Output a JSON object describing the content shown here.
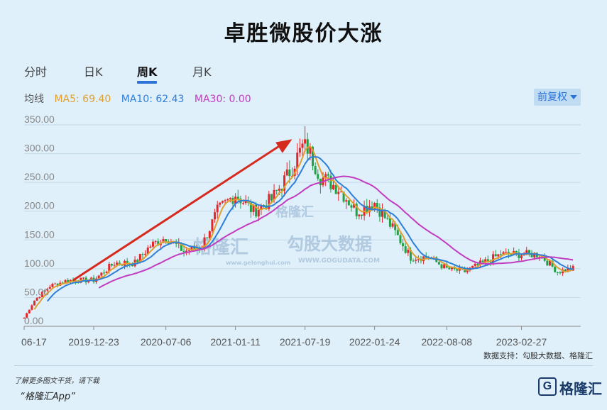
{
  "title": "卓胜微股价大涨",
  "tabs": [
    {
      "label": "分时",
      "active": false
    },
    {
      "label": "日K",
      "active": false
    },
    {
      "label": "周K",
      "active": true
    },
    {
      "label": "月K",
      "active": false
    }
  ],
  "ma_legend": {
    "label": "均线",
    "ma5": "MA5: 69.40",
    "ma10": "MA10: 62.43",
    "ma30": "MA30: 0.00"
  },
  "adjust_button": "前复权",
  "watermarks": [
    "格隆汇",
    "勾股大数据",
    "www.gelonghui.com",
    "WWW.GOGUDATA.COM"
  ],
  "source_text": "数据支持：勾股大数据、格隆汇",
  "footer": {
    "note1": "了解更多图文干货，请下载",
    "note2": "“格隆汇App”",
    "brand": "格隆汇"
  },
  "colors": {
    "up": "#e3262a",
    "down": "#22a046",
    "ma5": "#e0a030",
    "ma10": "#2f7fd8",
    "ma30": "#c23cc0",
    "arrow": "#d62a1e",
    "accent": "#2b73d6"
  },
  "chart_data": {
    "type": "candlestick",
    "title": "卓胜微股价大涨",
    "period": "weekly",
    "ylim": [
      0,
      350
    ],
    "yticks": [
      "0.00",
      "50.00",
      "100.00",
      "150.00",
      "200.00",
      "250.00",
      "300.00",
      "350.00"
    ],
    "xtick_labels": [
      "06-17",
      "2019-12-23",
      "2020-07-06",
      "2021-01-11",
      "2021-07-19",
      "2022-01-24",
      "2022-08-08",
      "2023-02-27"
    ],
    "close_series": [
      {
        "t": "2019-06-17",
        "v": 15
      },
      {
        "t": "2019-07-15",
        "v": 45
      },
      {
        "t": "2019-08-26",
        "v": 70
      },
      {
        "t": "2019-10-14",
        "v": 80
      },
      {
        "t": "2019-12-23",
        "v": 80
      },
      {
        "t": "2020-02-17",
        "v": 110
      },
      {
        "t": "2020-04-13",
        "v": 110
      },
      {
        "t": "2020-05-25",
        "v": 140
      },
      {
        "t": "2020-07-06",
        "v": 155
      },
      {
        "t": "2020-08-24",
        "v": 130
      },
      {
        "t": "2020-10-12",
        "v": 140
      },
      {
        "t": "2020-11-23",
        "v": 200
      },
      {
        "t": "2021-01-11",
        "v": 230
      },
      {
        "t": "2021-03-01",
        "v": 200
      },
      {
        "t": "2021-04-19",
        "v": 220
      },
      {
        "t": "2021-05-31",
        "v": 260
      },
      {
        "t": "2021-07-19",
        "v": 320
      },
      {
        "t": "2021-08-30",
        "v": 260
      },
      {
        "t": "2021-10-18",
        "v": 240
      },
      {
        "t": "2021-12-06",
        "v": 200
      },
      {
        "t": "2022-01-24",
        "v": 215
      },
      {
        "t": "2022-03-14",
        "v": 170
      },
      {
        "t": "2022-05-02",
        "v": 120
      },
      {
        "t": "2022-06-20",
        "v": 120
      },
      {
        "t": "2022-08-08",
        "v": 100
      },
      {
        "t": "2022-09-26",
        "v": 95
      },
      {
        "t": "2022-11-14",
        "v": 110
      },
      {
        "t": "2023-01-02",
        "v": 125
      },
      {
        "t": "2023-02-27",
        "v": 125
      },
      {
        "t": "2023-04-17",
        "v": 125
      },
      {
        "t": "2023-06-05",
        "v": 95
      },
      {
        "t": "2023-07-17",
        "v": 100
      }
    ],
    "peak": {
      "t": "2021-07-19",
      "v": 340
    },
    "annotations": [
      {
        "type": "arrow",
        "from": {
          "t": "2019-10-28",
          "v": 80
        },
        "to": {
          "t": "2021-06-14",
          "v": 325
        }
      }
    ]
  }
}
